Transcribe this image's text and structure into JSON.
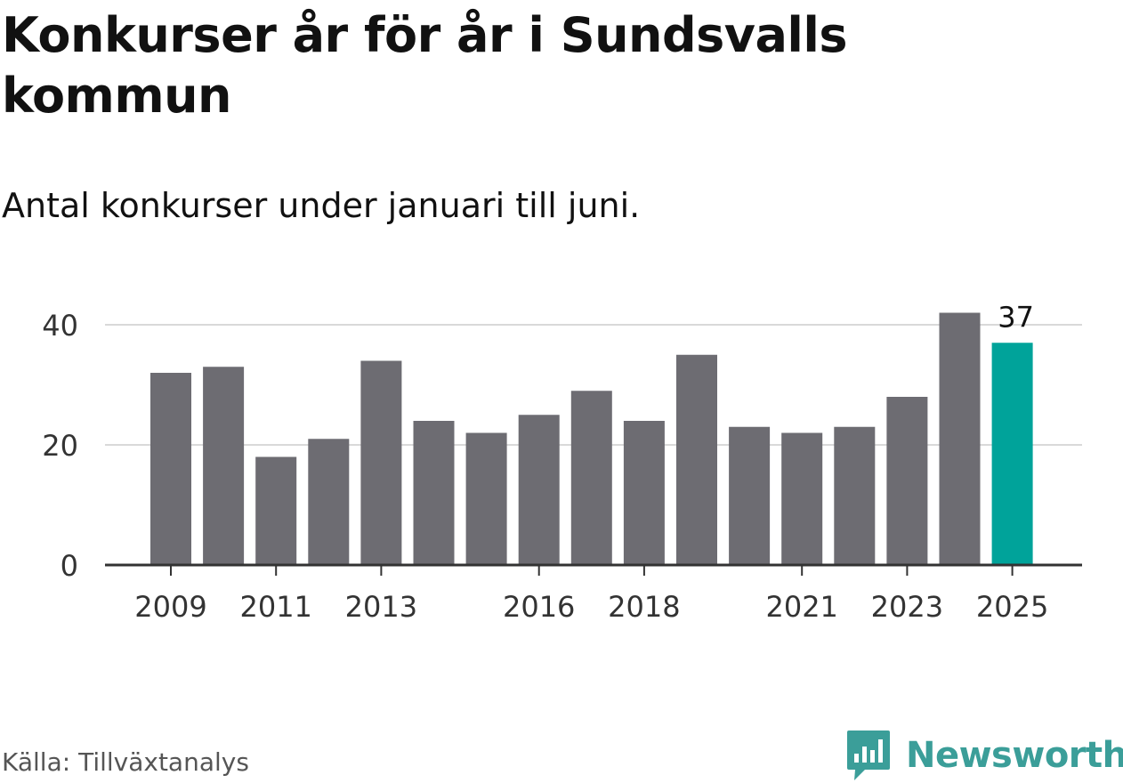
{
  "header": {
    "title": "Konkurser år för år i Sundsvalls kommun",
    "subtitle": "Antal konkurser under januari till juni."
  },
  "footer": {
    "source": "Källa: Tillväxtanalys",
    "brand": "Newsworthy",
    "brand_icon": "bar-chart-speech-bubble-icon"
  },
  "colors": {
    "bar": "#6d6c72",
    "highlight": "#00a39a",
    "grid": "#d9d9d9",
    "axis": "#333333",
    "brand": "#3b9e99"
  },
  "chart_data": {
    "type": "bar",
    "categories": [
      "2009",
      "2010",
      "2011",
      "2012",
      "2013",
      "2014",
      "2015",
      "2016",
      "2017",
      "2018",
      "2019",
      "2020",
      "2021",
      "2022",
      "2023",
      "2024",
      "2025"
    ],
    "values": [
      32,
      33,
      18,
      21,
      34,
      24,
      22,
      25,
      29,
      24,
      35,
      23,
      22,
      23,
      28,
      42,
      37
    ],
    "highlight_index": 16,
    "highlight_label": "37",
    "x_tick_labels": [
      "2009",
      "2011",
      "2013",
      "2016",
      "2018",
      "2021",
      "2023",
      "2025"
    ],
    "y_ticks": [
      0,
      20,
      40
    ],
    "ylim": [
      0,
      42
    ],
    "grid": true,
    "title": "Konkurser år för år i Sundsvalls kommun",
    "xlabel": "",
    "ylabel": ""
  }
}
